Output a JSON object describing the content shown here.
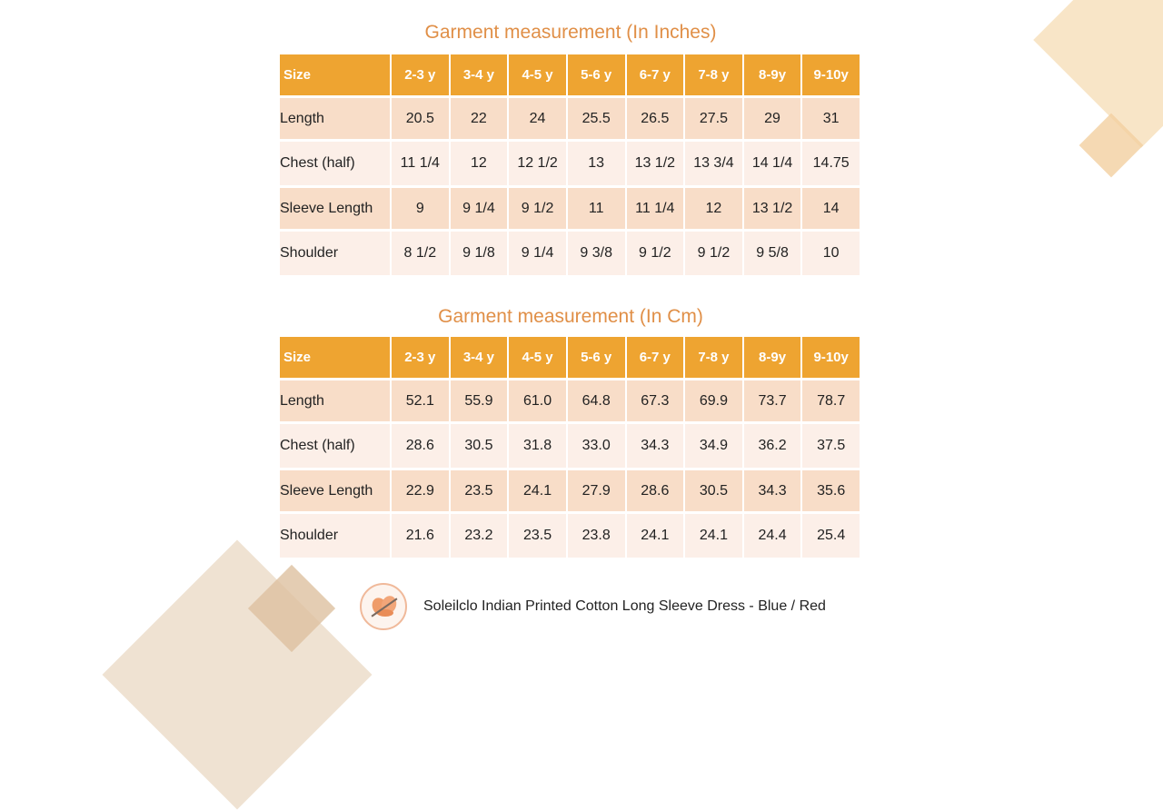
{
  "tables": [
    {
      "title": "Garment measurement (In Inches)",
      "headers": [
        "Size",
        "2-3 y",
        "3-4 y",
        "4-5 y",
        "5-6 y",
        "6-7 y",
        "7-8 y",
        "8-9y",
        "9-10y"
      ],
      "rows": [
        {
          "label": "Length",
          "values": [
            "20.5",
            "22",
            "24",
            "25.5",
            "26.5",
            "27.5",
            "29",
            "31"
          ]
        },
        {
          "label": "Chest (half)",
          "values": [
            "11 1/4",
            "12",
            "12 1/2",
            "13",
            "13 1/2",
            "13 3/4",
            "14 1/4",
            "14.75"
          ]
        },
        {
          "label": "Sleeve Length",
          "values": [
            "9",
            "9 1/4",
            "9 1/2",
            "11",
            "11 1/4",
            "12",
            "13 1/2",
            "14"
          ]
        },
        {
          "label": "Shoulder",
          "values": [
            "8 1/2",
            "9 1/8",
            "9 1/4",
            "9 3/8",
            "9 1/2",
            "9 1/2",
            "9 5/8",
            "10"
          ]
        }
      ]
    },
    {
      "title": "Garment measurement (In Cm)",
      "headers": [
        "Size",
        "2-3 y",
        "3-4 y",
        "4-5 y",
        "5-6 y",
        "6-7 y",
        "7-8 y",
        "8-9y",
        "9-10y"
      ],
      "rows": [
        {
          "label": "Length",
          "values": [
            "52.1",
            "55.9",
            "61.0",
            "64.8",
            "67.3",
            "69.9",
            "73.7",
            "78.7"
          ]
        },
        {
          "label": "Chest (half)",
          "values": [
            "28.6",
            "30.5",
            "31.8",
            "33.0",
            "34.3",
            "34.9",
            "36.2",
            "37.5"
          ]
        },
        {
          "label": "Sleeve Length",
          "values": [
            "22.9",
            "23.5",
            "24.1",
            "27.9",
            "28.6",
            "30.5",
            "34.3",
            "35.6"
          ]
        },
        {
          "label": "Shoulder",
          "values": [
            "21.6",
            "23.2",
            "23.5",
            "23.8",
            "24.1",
            "24.1",
            "24.4",
            "25.4"
          ]
        }
      ]
    }
  ],
  "footer": {
    "logo_icon": "brand-logo-icon",
    "caption": "Soleilclo  Indian Printed Cotton Long Sleeve Dress - Blue / Red"
  },
  "colors": {
    "title": "#e08f47",
    "header_bg": "#eea431",
    "row_dark": "#f8ddc8",
    "row_light": "#fcefe8"
  }
}
